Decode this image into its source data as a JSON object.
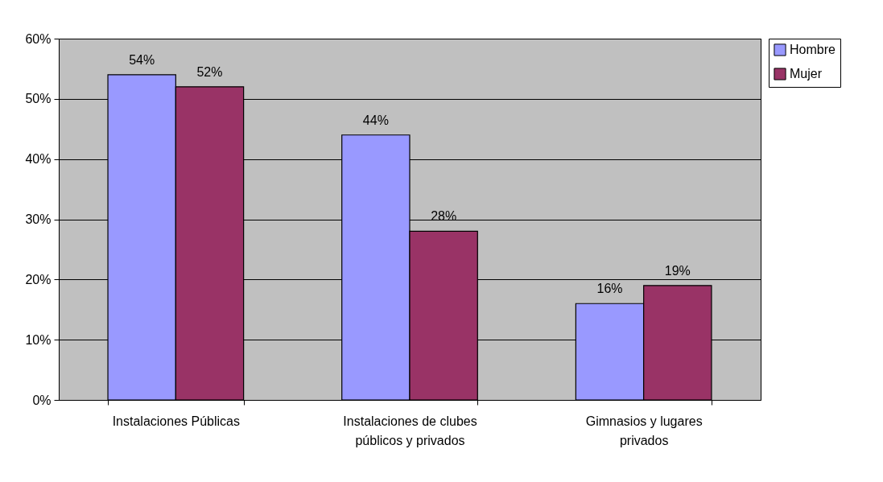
{
  "chart_data": {
    "type": "bar",
    "categories": [
      "Instalaciones Públicas",
      "Instalaciones de clubes públicos y privados",
      "Gimnasios y lugares privados"
    ],
    "series": [
      {
        "name": "Hombre",
        "color": "#9999ff",
        "values": [
          54,
          44,
          16
        ],
        "value_labels": [
          "54%",
          "44%",
          "16%"
        ]
      },
      {
        "name": "Mujer",
        "color": "#993366",
        "values": [
          52,
          28,
          19
        ],
        "value_labels": [
          "52%",
          "28%",
          "19%"
        ]
      }
    ],
    "ylim": [
      0,
      60
    ],
    "yticks": [
      {
        "value": 0,
        "label": "0%"
      },
      {
        "value": 10,
        "label": "10%"
      },
      {
        "value": 20,
        "label": "20%"
      },
      {
        "value": 30,
        "label": "30%"
      },
      {
        "value": 40,
        "label": "40%"
      },
      {
        "value": 50,
        "label": "50%"
      },
      {
        "value": 60,
        "label": "60%"
      }
    ],
    "grid": "y",
    "legend": "right"
  }
}
